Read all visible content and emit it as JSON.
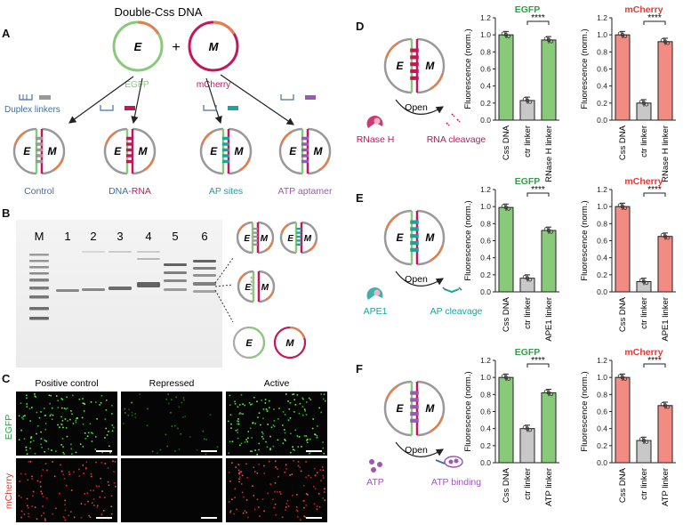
{
  "panel_labels": {
    "A": "A",
    "B": "B",
    "C": "C",
    "D": "D",
    "E": "E",
    "F": "F"
  },
  "panel_a": {
    "title": "Double-Css DNA",
    "plus": "+",
    "plasmid_e": {
      "letter": "E",
      "name": "EGFP"
    },
    "plasmid_m": {
      "letter": "M",
      "name": "mCherry"
    },
    "linker_label": "Duplex linkers",
    "variants": [
      {
        "label": "Control",
        "color": "#3f6f9f"
      },
      {
        "label_dna": "DNA-",
        "label_rna": "RNA",
        "color": "#c2185b"
      },
      {
        "label": "AP sites",
        "color": "#1ba39c"
      },
      {
        "label": "ATP aptamer",
        "color": "#9b59b6"
      }
    ]
  },
  "panel_b": {
    "lanes": [
      "M",
      "1",
      "2",
      "3",
      "4",
      "5",
      "6"
    ]
  },
  "panel_c": {
    "columns": [
      "Positive control",
      "Repressed",
      "Active"
    ],
    "rows": [
      "EGFP",
      "mCherry"
    ]
  },
  "colors": {
    "egfp": "#88c97a",
    "mcherry": "#f28b82",
    "ctr": "#c8c8c8",
    "green_text": "#2ea043",
    "red_text": "#e53935"
  },
  "chart_data": [
    {
      "type": "bar",
      "panel": "D",
      "title": "EGFP",
      "ylabel": "Fluorescence (norm.)",
      "categories": [
        "Css DNA",
        "ctr linker",
        "RNase H linker"
      ],
      "values": [
        1.0,
        0.23,
        0.94
      ],
      "ylim": [
        0,
        1.2
      ],
      "yticks": [
        "0.0",
        "0.2",
        "0.4",
        "0.6",
        "0.8",
        "1.0",
        "1.2"
      ],
      "significance": "****"
    },
    {
      "type": "bar",
      "panel": "D",
      "title": "mCherry",
      "ylabel": "Fluorescence (norm.)",
      "categories": [
        "Css DNA",
        "ctr linker",
        "RNase H linker"
      ],
      "values": [
        1.0,
        0.2,
        0.92
      ],
      "ylim": [
        0,
        1.2
      ],
      "yticks": [
        "0.0",
        "0.2",
        "0.4",
        "0.6",
        "0.8",
        "1.0",
        "1.2"
      ],
      "significance": "****"
    },
    {
      "type": "bar",
      "panel": "E",
      "title": "EGFP",
      "ylabel": "Fluorescence (norm.)",
      "categories": [
        "Css DNA",
        "ctr linker",
        "APE1 linker"
      ],
      "values": [
        0.99,
        0.16,
        0.72
      ],
      "ylim": [
        0,
        1.2
      ],
      "yticks": [
        "0.0",
        "0.2",
        "0.4",
        "0.6",
        "0.8",
        "1.0",
        "1.2"
      ],
      "significance": "****"
    },
    {
      "type": "bar",
      "panel": "E",
      "title": "mCherry",
      "ylabel": "Fluorescence (norm.)",
      "categories": [
        "Css DNA",
        "ctr linker",
        "APE1 linker"
      ],
      "values": [
        1.0,
        0.12,
        0.65
      ],
      "ylim": [
        0,
        1.2
      ],
      "yticks": [
        "0.0",
        "0.2",
        "0.4",
        "0.6",
        "0.8",
        "1.0",
        "1.2"
      ],
      "significance": "****"
    },
    {
      "type": "bar",
      "panel": "F",
      "title": "EGFP",
      "ylabel": "Fluorescence (norm.)",
      "categories": [
        "Css DNA",
        "ctr linker",
        "ATP linker"
      ],
      "values": [
        1.0,
        0.4,
        0.82
      ],
      "ylim": [
        0,
        1.2
      ],
      "yticks": [
        "0.0",
        "0.2",
        "0.4",
        "0.6",
        "0.8",
        "1.0",
        "1.2"
      ],
      "significance": "****"
    },
    {
      "type": "bar",
      "panel": "F",
      "title": "mCherry",
      "ylabel": "Fluorescence (norm.)",
      "categories": [
        "Css DNA",
        "ctr linker",
        "ATP linker"
      ],
      "values": [
        1.0,
        0.26,
        0.67
      ],
      "ylim": [
        0,
        1.2
      ],
      "yticks": [
        "0.0",
        "0.2",
        "0.4",
        "0.6",
        "0.8",
        "1.0",
        "1.2"
      ],
      "significance": "****"
    }
  ],
  "schemes": [
    {
      "panel": "D",
      "enzyme": "RNase H",
      "action": "Open",
      "result": "RNA cleavage",
      "color": "#c2185b",
      "enzyme_color": "#c2185b"
    },
    {
      "panel": "E",
      "enzyme": "APE1",
      "action": "Open",
      "result": "AP cleavage",
      "color": "#1ba39c",
      "enzyme_color": "#1ba39c"
    },
    {
      "panel": "F",
      "enzyme": "ATP",
      "action": "Open",
      "result": "ATP binding",
      "color": "#9b59b6",
      "enzyme_color": "#9b59b6"
    }
  ]
}
